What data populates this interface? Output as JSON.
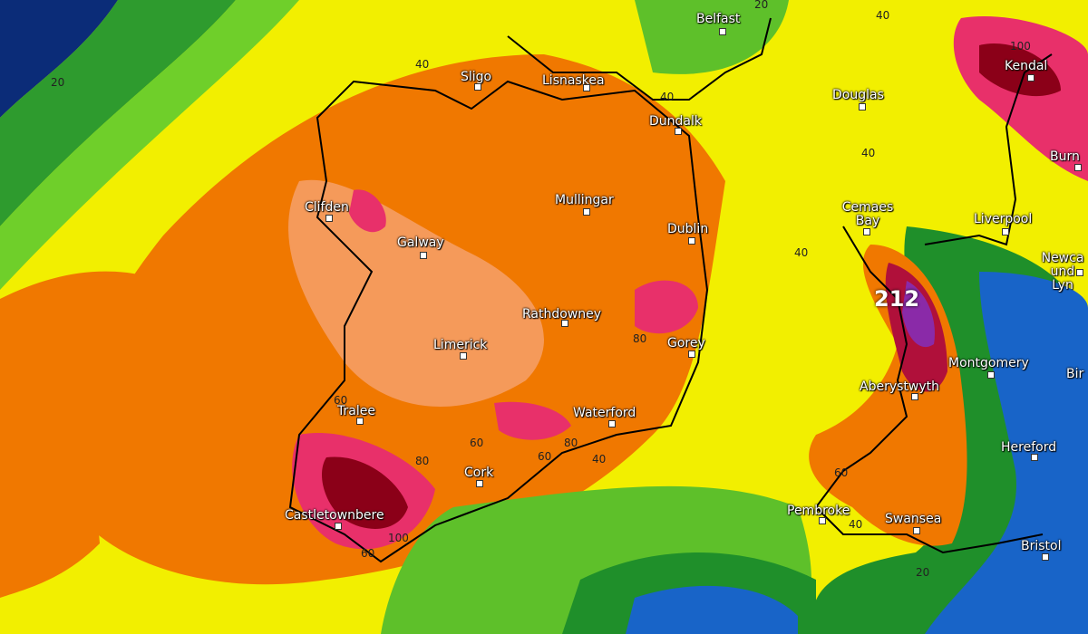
{
  "places": [
    "Belfast",
    "Sligo",
    "Lisnaskea",
    "Dundalk",
    "Douglas",
    "Kendal",
    "Burn",
    "Mullingar",
    "Clifden",
    "Galway",
    "Dublin",
    "Cemaes Bay",
    "Liverpool",
    "Newca und Lyn",
    "Rathdowney",
    "Gorey",
    "Limerick",
    "Montgomery",
    "Bir",
    "Aberystwyth",
    "Tralee",
    "Waterford",
    "Hereford",
    "Cork",
    "Castletownbere",
    "Pembroke",
    "Swansea",
    "Bristol"
  ],
  "contour_labels": [
    20,
    20,
    40,
    40,
    40,
    40,
    40,
    100,
    80,
    60,
    80,
    60,
    80,
    60,
    40,
    100,
    60,
    60,
    40,
    20
  ],
  "peak_label": 212
}
